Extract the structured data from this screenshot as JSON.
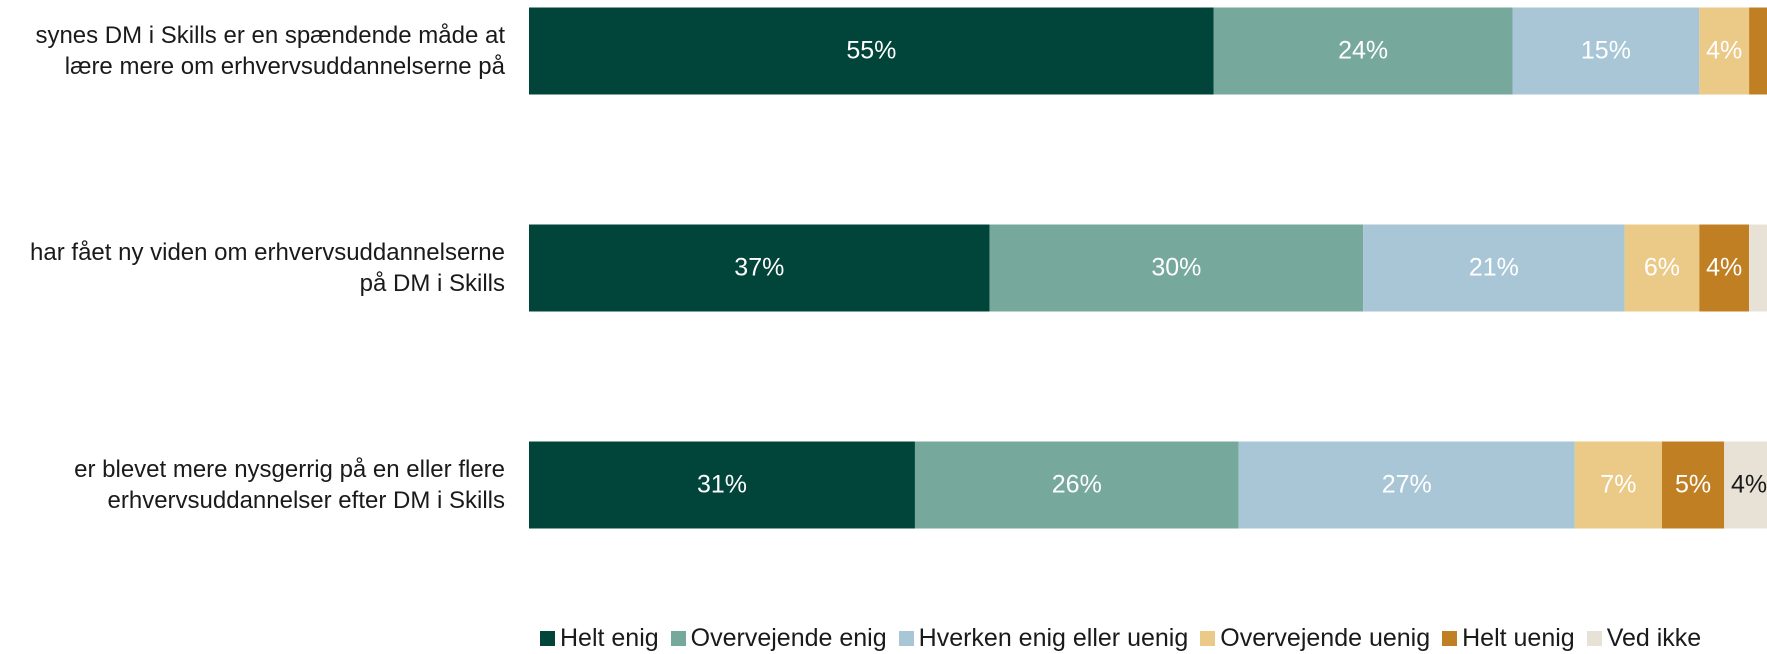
{
  "chart_data": {
    "type": "stacked_barh",
    "categories": [
      "synes DM i Skills er en spændende måde at lære mere om erhvervsuddannelserne på",
      "har fået ny viden om erhvervsuddannelserne på DM i Skills",
      "er blevet mere nysgerrig på en eller flere erhvervsuddannelser efter DM i Skills"
    ],
    "series": [
      {
        "name": "Helt enig",
        "color": "#00443a",
        "values": [
          55,
          37,
          31
        ],
        "value_labels": [
          "55%",
          "37%",
          "31%"
        ]
      },
      {
        "name": "Overvejende enig",
        "color": "#76a99b",
        "values": [
          24,
          30,
          26
        ],
        "value_labels": [
          "24%",
          "30%",
          "26%"
        ]
      },
      {
        "name": "Hverken enig eller uenig",
        "color": "#a8c6d6",
        "values": [
          15,
          21,
          27
        ],
        "value_labels": [
          "15%",
          "21%",
          "27%"
        ]
      },
      {
        "name": "Overvejende uenig",
        "color": "#ebc987",
        "values": [
          4,
          6,
          7
        ],
        "value_labels": [
          "4%",
          "6%",
          "7%"
        ]
      },
      {
        "name": "Helt uenig",
        "color": "#c17f24",
        "values": [
          2,
          4,
          5
        ],
        "value_labels": [
          null,
          "4%",
          "5%"
        ]
      },
      {
        "name": "Ved ikke",
        "color": "#e8e2d6",
        "values": [
          0,
          2,
          4
        ],
        "value_labels": [
          null,
          null,
          "4%"
        ]
      }
    ],
    "xlim": [
      0,
      100
    ]
  }
}
